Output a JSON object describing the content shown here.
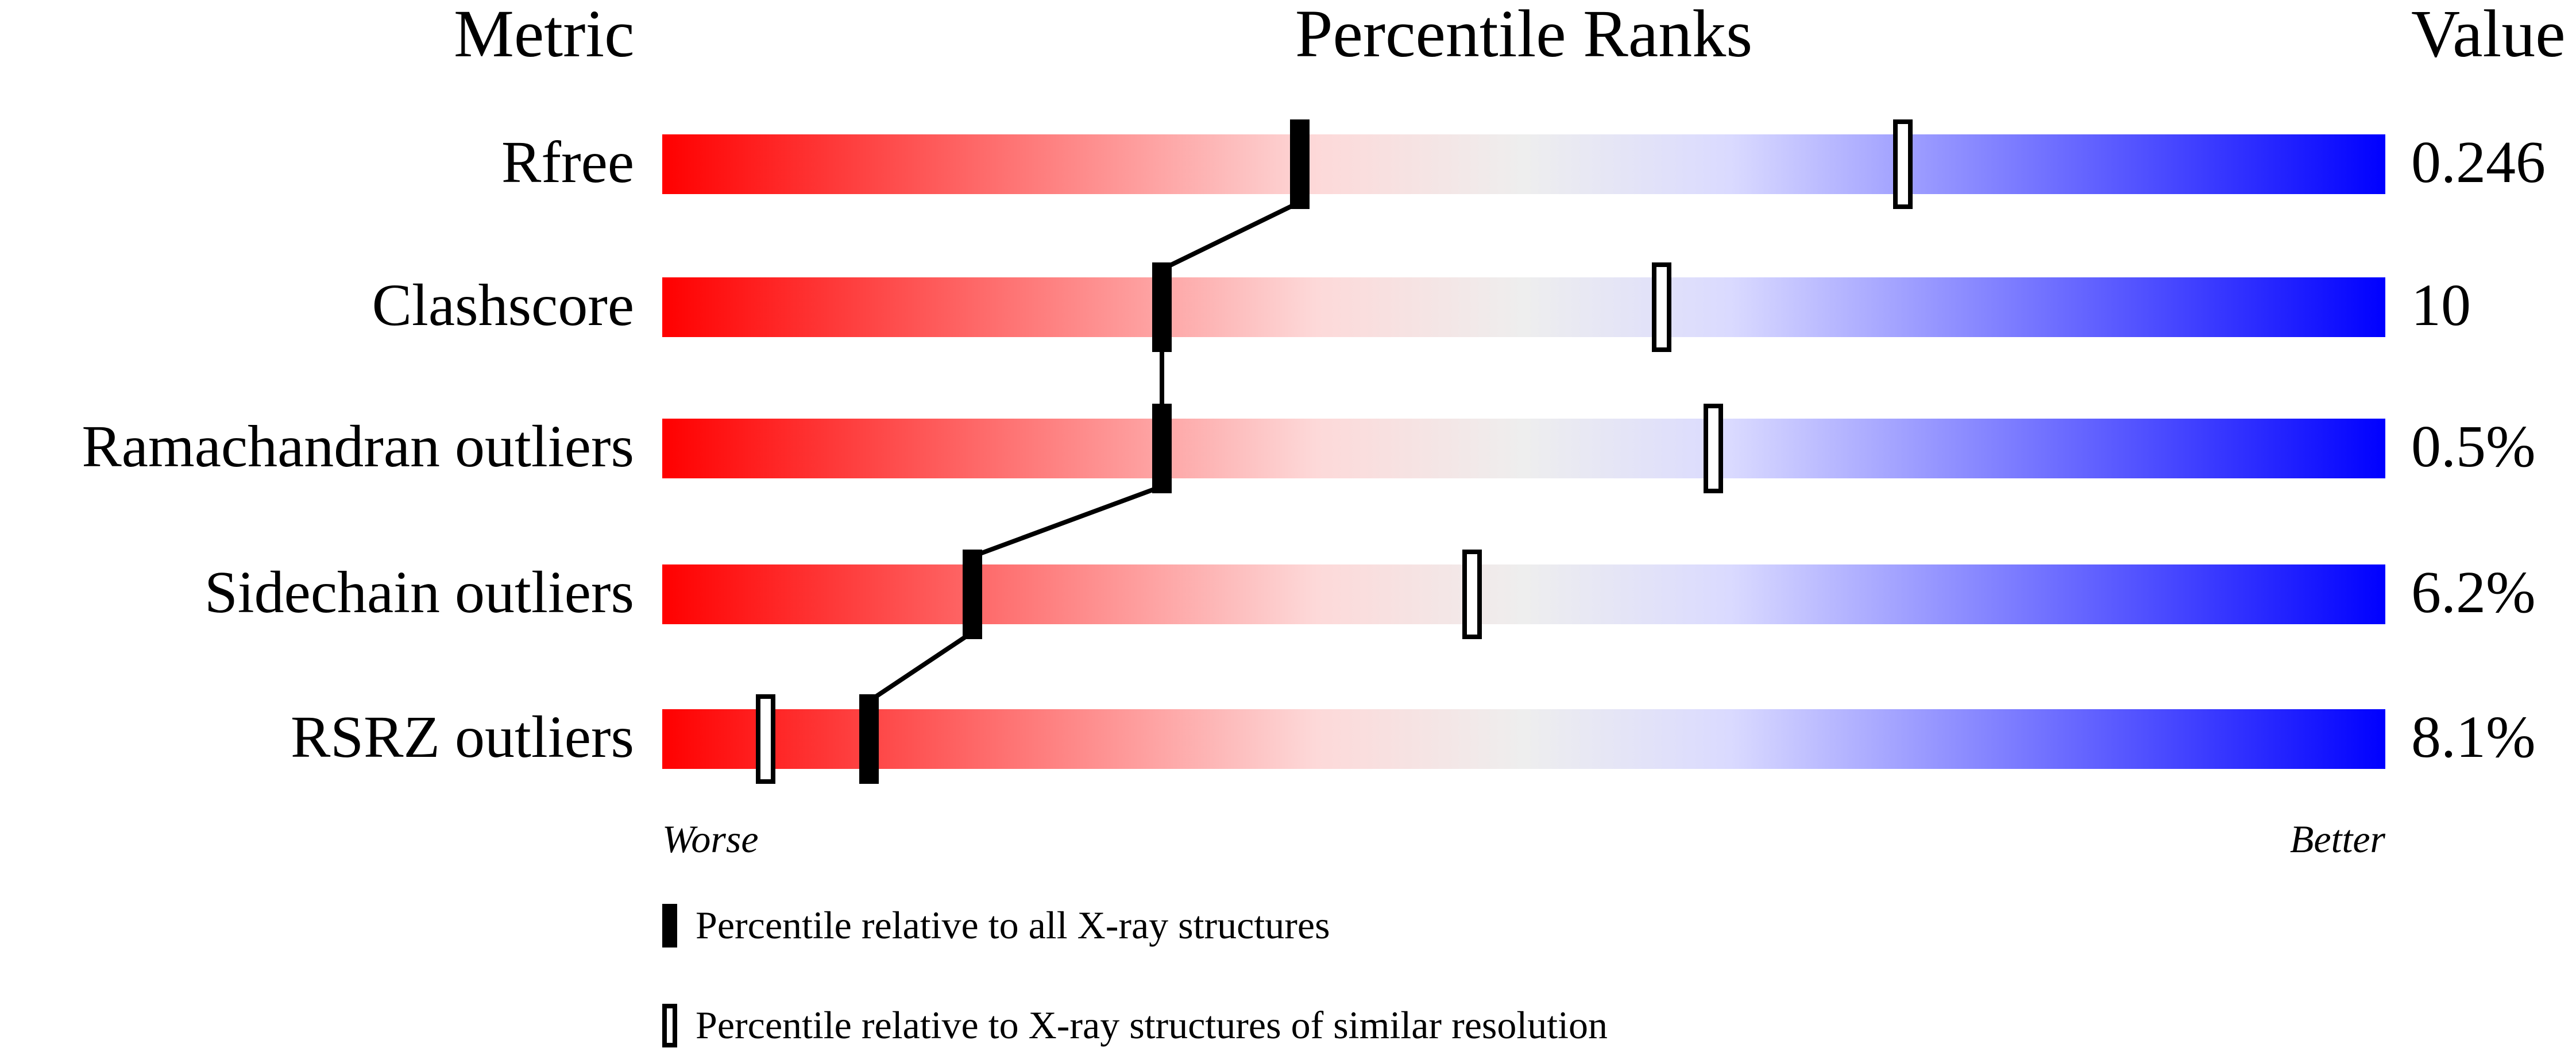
{
  "chart_data": {
    "type": "percentile-slider",
    "headers": {
      "metric": "Metric",
      "ranks": "Percentile Ranks",
      "value": "Value"
    },
    "xlim": [
      0,
      100
    ],
    "gradient_colors": [
      "#ff0000",
      "#fdd9d9",
      "#eeeeee",
      "#dadaff",
      "#0000ff"
    ],
    "rows": [
      {
        "metric": "Rfree",
        "value": "0.246",
        "percentile_all": 37,
        "percentile_similar": 72
      },
      {
        "metric": "Clashscore",
        "value": "10",
        "percentile_all": 29,
        "percentile_similar": 58
      },
      {
        "metric": "Ramachandran outliers",
        "value": "0.5%",
        "percentile_all": 29,
        "percentile_similar": 61
      },
      {
        "metric": "Sidechain outliers",
        "value": "6.2%",
        "percentile_all": 18,
        "percentile_similar": 47
      },
      {
        "metric": "RSRZ outliers",
        "value": "8.1%",
        "percentile_all": 12,
        "percentile_similar": 6
      }
    ],
    "axis_labels": {
      "left": "Worse",
      "right": "Better"
    },
    "legend": [
      {
        "marker": "filled",
        "label": "Percentile relative to all X-ray structures"
      },
      {
        "marker": "open",
        "label": "Percentile relative to X-ray structures of similar resolution"
      }
    ]
  }
}
